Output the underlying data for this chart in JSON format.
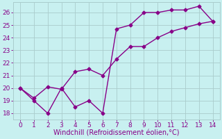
{
  "line1_x": [
    0,
    1,
    2,
    3,
    4,
    5,
    6,
    7,
    8,
    9,
    10,
    11,
    12,
    13,
    14
  ],
  "line1_y": [
    20.0,
    19.0,
    18.0,
    20.0,
    18.5,
    19.0,
    18.0,
    24.7,
    25.0,
    26.0,
    26.0,
    26.2,
    26.2,
    26.5,
    25.3
  ],
  "line2_x": [
    0,
    1,
    2,
    3,
    4,
    5,
    6,
    7,
    8,
    9,
    10,
    11,
    12,
    13,
    14
  ],
  "line2_y": [
    20.0,
    19.2,
    20.1,
    19.9,
    21.3,
    21.5,
    21.0,
    22.3,
    23.3,
    23.3,
    24.0,
    24.5,
    24.8,
    25.1,
    25.3
  ],
  "color": "#880088",
  "bg_color": "#c8f0f0",
  "grid_color": "#aacccc",
  "xlabel": "Windchill (Refroidissement éolien,°C)",
  "xlim": [
    -0.5,
    14.5
  ],
  "ylim": [
    17.5,
    26.8
  ],
  "xticks": [
    0,
    1,
    2,
    3,
    4,
    5,
    6,
    7,
    8,
    9,
    10,
    11,
    12,
    13,
    14
  ],
  "yticks": [
    18,
    19,
    20,
    21,
    22,
    23,
    24,
    25,
    26
  ],
  "marker": "D",
  "markersize": 2.5,
  "linewidth": 1.0,
  "xlabel_fontsize": 7.0,
  "tick_fontsize": 6.5
}
